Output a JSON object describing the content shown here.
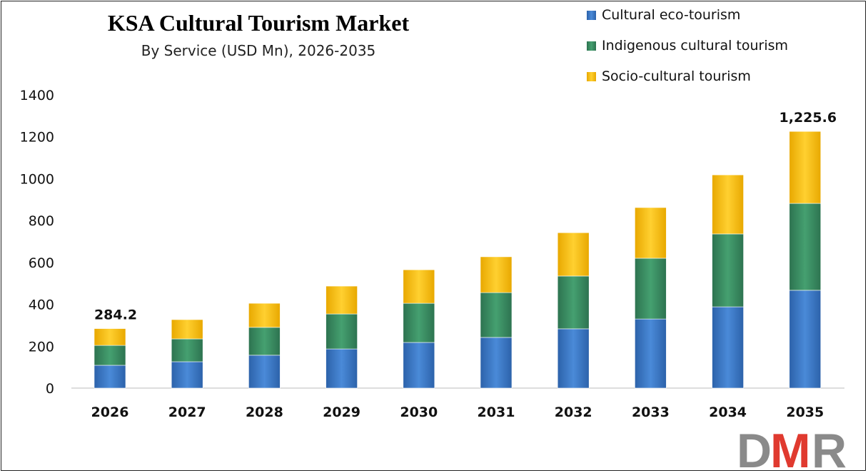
{
  "chart_data": {
    "type": "bar",
    "stacked": true,
    "title": "KSA Cultural Tourism Market",
    "subtitle": "By Service (USD Mn), 2026-2035",
    "xlabel": "",
    "ylabel": "",
    "ylim": [
      0,
      1400
    ],
    "yticks": [
      0,
      200,
      400,
      600,
      800,
      1000,
      1200,
      1400
    ],
    "grid": false,
    "legend_position": "top-right",
    "categories": [
      "2026",
      "2027",
      "2028",
      "2029",
      "2030",
      "2031",
      "2032",
      "2033",
      "2034",
      "2035"
    ],
    "series": [
      {
        "name": "Cultural eco-tourism",
        "color": "#3b78c8",
        "values": [
          109,
          126,
          157,
          187,
          218,
          242,
          283,
          330,
          388,
          467
        ]
      },
      {
        "name": "Indigenous cultural tourism",
        "color": "#3a8a5e",
        "values": [
          95,
          109,
          133,
          167,
          187,
          214,
          252,
          290,
          348,
          415
        ]
      },
      {
        "name": "Socio-cultural tourism",
        "color": "#ffc000",
        "values": [
          80.2,
          92,
          115,
          133,
          160,
          171,
          207,
          242,
          282,
          343.6
        ]
      }
    ],
    "data_labels": [
      {
        "category": "2026",
        "text": "284.2"
      },
      {
        "category": "2035",
        "text": "1,225.6"
      }
    ]
  },
  "logo": {
    "text": "DMR",
    "colors": [
      "#8a8a8a",
      "#e03a2f",
      "#8a8a8a"
    ]
  }
}
